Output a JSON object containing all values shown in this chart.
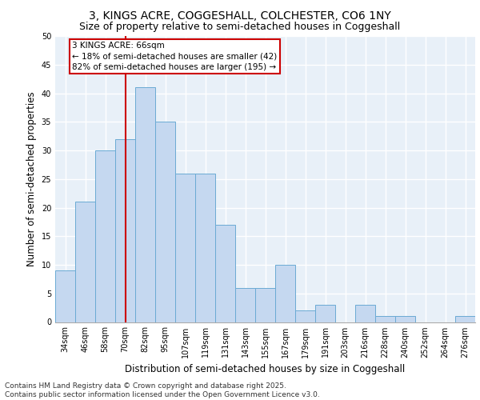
{
  "title_line1": "3, KINGS ACRE, COGGESHALL, COLCHESTER, CO6 1NY",
  "title_line2": "Size of property relative to semi-detached houses in Coggeshall",
  "xlabel": "Distribution of semi-detached houses by size in Coggeshall",
  "ylabel": "Number of semi-detached properties",
  "categories": [
    "34sqm",
    "46sqm",
    "58sqm",
    "70sqm",
    "82sqm",
    "95sqm",
    "107sqm",
    "119sqm",
    "131sqm",
    "143sqm",
    "155sqm",
    "167sqm",
    "179sqm",
    "191sqm",
    "203sqm",
    "216sqm",
    "228sqm",
    "240sqm",
    "252sqm",
    "264sqm",
    "276sqm"
  ],
  "values": [
    9,
    21,
    30,
    32,
    41,
    35,
    26,
    26,
    17,
    6,
    6,
    10,
    2,
    3,
    0,
    3,
    1,
    1,
    0,
    0,
    1
  ],
  "bar_color": "#c5d8f0",
  "bar_edge_color": "#6aaad4",
  "annotation_text": "3 KINGS ACRE: 66sqm\n← 18% of semi-detached houses are smaller (42)\n82% of semi-detached houses are larger (195) →",
  "annotation_box_color": "#ffffff",
  "annotation_box_edge_color": "#cc0000",
  "vline_color": "#cc0000",
  "vline_x": 3.0,
  "ylim": [
    0,
    50
  ],
  "yticks": [
    0,
    5,
    10,
    15,
    20,
    25,
    30,
    35,
    40,
    45,
    50
  ],
  "background_color": "#e8f0f8",
  "grid_color": "#ffffff",
  "footer_text": "Contains HM Land Registry data © Crown copyright and database right 2025.\nContains public sector information licensed under the Open Government Licence v3.0.",
  "title_fontsize": 10,
  "subtitle_fontsize": 9,
  "axis_label_fontsize": 8.5,
  "tick_fontsize": 7,
  "annotation_fontsize": 7.5,
  "footer_fontsize": 6.5
}
